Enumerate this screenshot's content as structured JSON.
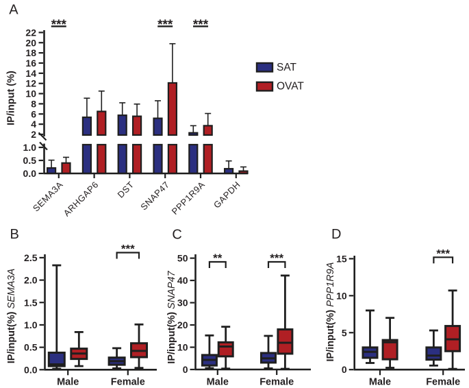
{
  "figure": {
    "background": "#ffffff",
    "text_color": "#231f20",
    "line_color": "#1f1f1f",
    "legend": {
      "items": [
        {
          "label": "SAT",
          "color": "#2b2f80"
        },
        {
          "label": "OVAT",
          "color": "#b01f24"
        }
      ]
    }
  },
  "chart_data": [
    {
      "panel": "A",
      "type": "bar",
      "ylabel": "IP/input (%)",
      "categories": [
        "SEMA3A",
        "ARHGAP6",
        "DST",
        "SNAP47",
        "PPP1R9A",
        "GAPDH"
      ],
      "series": [
        {
          "name": "SAT",
          "color": "#2b2f80",
          "values": [
            0.21,
            5.35,
            5.75,
            5.15,
            2.3,
            0.18
          ],
          "sd_upper": [
            0.3,
            3.75,
            2.45,
            3.45,
            1.4,
            0.3
          ]
        },
        {
          "name": "OVAT",
          "color": "#b01f24",
          "values": [
            0.4,
            6.5,
            5.55,
            12.1,
            3.7,
            0.09
          ],
          "sd_upper": [
            0.22,
            4.0,
            2.4,
            7.7,
            2.4,
            0.16
          ]
        }
      ],
      "axis_break": {
        "lower_ticks": [
          "0.0",
          "0.5",
          "1.0"
        ],
        "lower_range": [
          0,
          1.0
        ],
        "upper_ticks": [
          "2",
          "4",
          "6",
          "8",
          "10",
          "12",
          "14",
          "16",
          "18",
          "20",
          "22"
        ],
        "upper_range": [
          2,
          22
        ]
      },
      "significance": [
        {
          "category": "SEMA3A",
          "label": "***"
        },
        {
          "category": "SNAP47",
          "label": "***"
        },
        {
          "category": "PPP1R9A",
          "label": "***"
        }
      ],
      "legend_position": "right of plot"
    },
    {
      "panel": "B",
      "type": "box",
      "ylabel_prefix": "IP/input(%)",
      "ylabel_gene": "SEMA3A",
      "groups": [
        "Male",
        "Female"
      ],
      "ylim": [
        0,
        2.5
      ],
      "yticks": [
        "0.0",
        "0.5",
        "1.0",
        "1.5",
        "2.0",
        "2.5"
      ],
      "boxes": [
        {
          "group": "Male",
          "series": "SAT",
          "min": 0.02,
          "q1": 0.08,
          "median": 0.12,
          "q3": 0.38,
          "max": 2.33
        },
        {
          "group": "Male",
          "series": "OVAT",
          "min": 0.08,
          "q1": 0.24,
          "median": 0.36,
          "q3": 0.47,
          "max": 0.84
        },
        {
          "group": "Female",
          "series": "SAT",
          "min": 0.03,
          "q1": 0.11,
          "median": 0.19,
          "q3": 0.27,
          "max": 0.48
        },
        {
          "group": "Female",
          "series": "OVAT",
          "min": 0.04,
          "q1": 0.28,
          "median": 0.42,
          "q3": 0.59,
          "max": 1.01
        }
      ],
      "significance": [
        {
          "group": "Female",
          "label": "***"
        }
      ]
    },
    {
      "panel": "C",
      "type": "box",
      "ylabel_prefix": "IP/input(%)",
      "ylabel_gene": "SNAP47",
      "groups": [
        "Male",
        "Female"
      ],
      "ylim": [
        0,
        50
      ],
      "yticks": [
        "0",
        "10",
        "20",
        "30",
        "40",
        "50"
      ],
      "boxes": [
        {
          "group": "Male",
          "series": "SAT",
          "min": 0.6,
          "q1": 1.8,
          "median": 4.3,
          "q3": 6.5,
          "max": 15.3
        },
        {
          "group": "Male",
          "series": "OVAT",
          "min": 0.4,
          "q1": 5.9,
          "median": 10.3,
          "q3": 12.2,
          "max": 19.2
        },
        {
          "group": "Female",
          "series": "SAT",
          "min": 0.5,
          "q1": 3.1,
          "median": 5.0,
          "q3": 7.4,
          "max": 15.1
        },
        {
          "group": "Female",
          "series": "OVAT",
          "min": 0.3,
          "q1": 7.1,
          "median": 12.0,
          "q3": 18.0,
          "max": 42.2
        }
      ],
      "significance": [
        {
          "group": "Male",
          "label": "**"
        },
        {
          "group": "Female",
          "label": "***"
        }
      ]
    },
    {
      "panel": "D",
      "type": "box",
      "ylabel_prefix": "IP/input(%)",
      "ylabel_gene": "PPP1R9A",
      "groups": [
        "Male",
        "Female"
      ],
      "ylim": [
        0,
        15
      ],
      "yticks": [
        "0",
        "5",
        "10",
        "15"
      ],
      "boxes": [
        {
          "group": "Male",
          "series": "SAT",
          "min": 0.9,
          "q1": 1.6,
          "median": 2.4,
          "q3": 3.0,
          "max": 8.0
        },
        {
          "group": "Male",
          "series": "OVAT",
          "min": 0.25,
          "q1": 1.4,
          "median": 3.7,
          "q3": 4.0,
          "max": 7.0
        },
        {
          "group": "Female",
          "series": "SAT",
          "min": 0.55,
          "q1": 1.35,
          "median": 1.9,
          "q3": 3.0,
          "max": 5.3
        },
        {
          "group": "Female",
          "series": "OVAT",
          "min": 0.1,
          "q1": 2.5,
          "median": 4.1,
          "q3": 5.9,
          "max": 10.7
        }
      ],
      "significance": [
        {
          "group": "Female",
          "label": "***"
        }
      ]
    }
  ]
}
